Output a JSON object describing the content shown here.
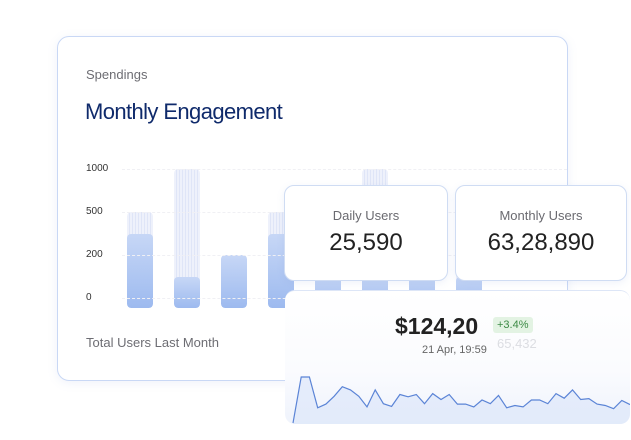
{
  "main": {
    "eyebrow": "Spendings",
    "title": "Monthly Engagement",
    "footer": "Total Users Last Month",
    "y_ticks": [
      "1000",
      "500",
      "200",
      "0"
    ],
    "bars": [
      {
        "total": 500,
        "filled": 350
      },
      {
        "total": 1000,
        "filled": 100
      },
      {
        "total": 200,
        "filled": 200
      },
      {
        "total": 500,
        "filled": 350
      },
      {
        "total": 500,
        "filled": 100
      },
      {
        "total": 1000,
        "filled": 100
      },
      {
        "total": 500,
        "filled": 100
      },
      {
        "total": 500,
        "filled": 100
      }
    ],
    "accent": "#0f2a6b"
  },
  "daily": {
    "label": "Daily Users",
    "value": "25,590"
  },
  "monthly": {
    "label": "Monthly Users",
    "value": "63,28,890"
  },
  "price": {
    "value": "$124,20",
    "change": "+3.4%",
    "ghost_value": "65,432",
    "date": "21 Apr, 19:59",
    "line_color": "#5b84d6",
    "series": [
      0,
      100,
      100,
      33,
      41,
      58,
      79,
      72,
      58,
      35,
      72,
      42,
      36,
      62,
      57,
      62,
      42,
      64,
      51,
      62,
      41,
      41,
      35,
      50,
      42,
      60,
      33,
      38,
      35,
      50,
      50,
      42,
      64,
      54,
      72,
      51,
      53,
      41,
      38,
      31,
      49,
      40
    ]
  }
}
